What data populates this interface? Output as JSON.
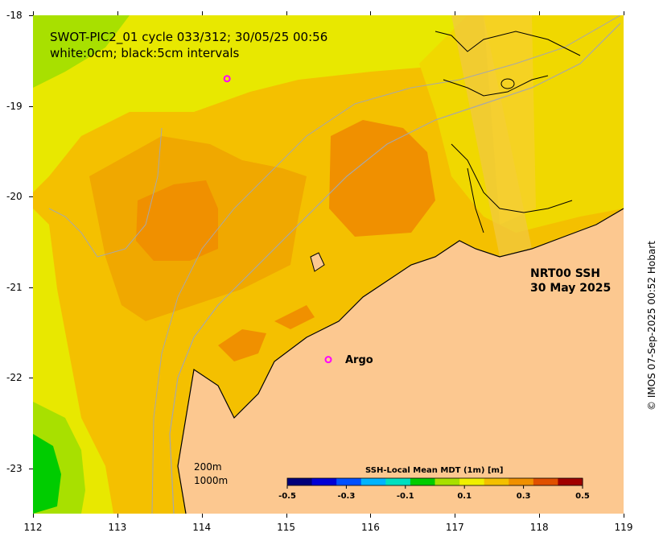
{
  "title": {
    "line1": "SWOT-PIC2_01 cycle 033/312; 30/05/25 00:56",
    "line2": "white:0cm; black:5cm intervals"
  },
  "product_label": {
    "line1": "NRT00 SSH",
    "line2": "30 May 2025"
  },
  "markers": [
    {
      "name": "Argo",
      "label": "Argo",
      "lon": 115.5,
      "lat": -21.8,
      "color": "#ff00ff"
    },
    {
      "name": "float",
      "label": "",
      "lon": 114.3,
      "lat": -18.7,
      "color": "#ff00ff"
    }
  ],
  "isobath_legend": {
    "line1": "200m",
    "line2": "1000m"
  },
  "colorbar": {
    "title": "SSH-Local Mean MDT (1m) [m]",
    "ticks": [
      "-0.5",
      "-0.3",
      "-0.1",
      "0.1",
      "0.3",
      "0.5"
    ],
    "range": [
      -0.5,
      0.5
    ],
    "colors": [
      "#00007a",
      "#0000d6",
      "#0050ff",
      "#00b4ff",
      "#00e0c0",
      "#00cc00",
      "#a8e000",
      "#f0f000",
      "#f4c000",
      "#f09000",
      "#e05000",
      "#a00000"
    ]
  },
  "axes": {
    "lat_labels": [
      "-18",
      "-19",
      "-20",
      "-21",
      "-22",
      "-23"
    ],
    "lon_labels": [
      "112",
      "113",
      "114",
      "115",
      "116",
      "117",
      "118",
      "119"
    ],
    "lat_range": [
      -23.5,
      -18
    ],
    "lon_range": [
      112,
      119
    ]
  },
  "credit": "© IMOS 07-Sep-2025 00:52 Hobart",
  "colors": {
    "land": "#fcc890",
    "ssh_high": "#f09000",
    "ssh_mid": "#f4c000",
    "ssh_low": "#e8e800",
    "ssh_green": "#00cc00"
  }
}
